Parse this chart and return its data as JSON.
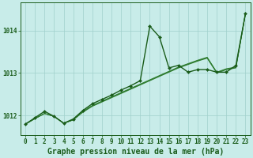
{
  "title": "Graphe pression niveau de la mer (hPa)",
  "xlabel_ticks": [
    0,
    1,
    2,
    3,
    4,
    5,
    6,
    7,
    8,
    9,
    10,
    11,
    12,
    13,
    14,
    15,
    16,
    17,
    18,
    19,
    20,
    21,
    22,
    23
  ],
  "yticks": [
    1012,
    1013,
    1014
  ],
  "ylim": [
    1011.55,
    1014.65
  ],
  "xlim": [
    -0.5,
    23.5
  ],
  "bg_color": "#c8ece9",
  "grid_color": "#a0d0cc",
  "dark_green": "#1a5c1a",
  "mid_green": "#2e7d2e",
  "series": {
    "line_jagged": {
      "x": [
        0,
        1,
        2,
        3,
        4,
        5,
        6,
        7,
        8,
        9,
        10,
        11,
        12,
        13,
        14,
        15,
        16,
        17,
        18,
        19,
        20,
        21,
        22,
        23
      ],
      "y": [
        1011.8,
        1011.95,
        1012.1,
        1011.98,
        1011.82,
        1011.92,
        1012.12,
        1012.28,
        1012.38,
        1012.48,
        1012.6,
        1012.7,
        1012.82,
        1014.1,
        1013.85,
        1013.12,
        1013.18,
        1013.02,
        1013.08,
        1013.08,
        1013.02,
        1013.02,
        1013.18,
        1014.4
      ],
      "color": "#1a5c1a",
      "lw": 1.0,
      "marker": "D",
      "ms": 2.0
    },
    "line_smooth1": {
      "x": [
        0,
        1,
        2,
        3,
        4,
        5,
        6,
        7,
        8,
        9,
        10,
        11,
        12,
        13,
        14,
        15,
        16,
        17,
        18,
        19,
        20,
        21,
        22,
        23
      ],
      "y": [
        1011.8,
        1011.93,
        1012.05,
        1011.98,
        1011.82,
        1011.9,
        1012.08,
        1012.22,
        1012.32,
        1012.42,
        1012.52,
        1012.62,
        1012.72,
        1012.82,
        1012.92,
        1013.02,
        1013.12,
        1013.2,
        1013.28,
        1013.35,
        1013.0,
        1013.08,
        1013.12,
        1014.4
      ],
      "color": "#2e7d2e",
      "lw": 0.8
    },
    "line_smooth2": {
      "x": [
        0,
        1,
        2,
        3,
        4,
        5,
        6,
        7,
        8,
        9,
        10,
        11,
        12,
        13,
        14,
        15,
        16,
        17,
        18,
        19,
        20,
        21,
        22,
        23
      ],
      "y": [
        1011.8,
        1011.93,
        1012.05,
        1011.98,
        1011.82,
        1011.9,
        1012.1,
        1012.24,
        1012.34,
        1012.44,
        1012.54,
        1012.64,
        1012.74,
        1012.84,
        1012.94,
        1013.04,
        1013.14,
        1013.22,
        1013.3,
        1013.37,
        1013.02,
        1013.1,
        1013.14,
        1014.4
      ],
      "color": "#2e7d2e",
      "lw": 0.7
    },
    "line_smooth3": {
      "x": [
        0,
        1,
        2,
        3,
        4,
        5,
        6,
        7,
        8,
        9,
        10,
        11,
        12,
        13,
        14,
        15,
        16,
        17,
        18,
        19,
        20,
        21,
        22,
        23
      ],
      "y": [
        1011.8,
        1011.93,
        1012.05,
        1011.98,
        1011.82,
        1011.9,
        1012.09,
        1012.23,
        1012.33,
        1012.43,
        1012.53,
        1012.63,
        1012.73,
        1012.83,
        1012.93,
        1013.03,
        1013.13,
        1013.21,
        1013.29,
        1013.36,
        1013.01,
        1013.09,
        1013.13,
        1014.4
      ],
      "color": "#1a5c1a",
      "lw": 0.6
    }
  },
  "tick_fontsize": 5.5,
  "title_fontsize": 7.0,
  "title_fontweight": "bold"
}
